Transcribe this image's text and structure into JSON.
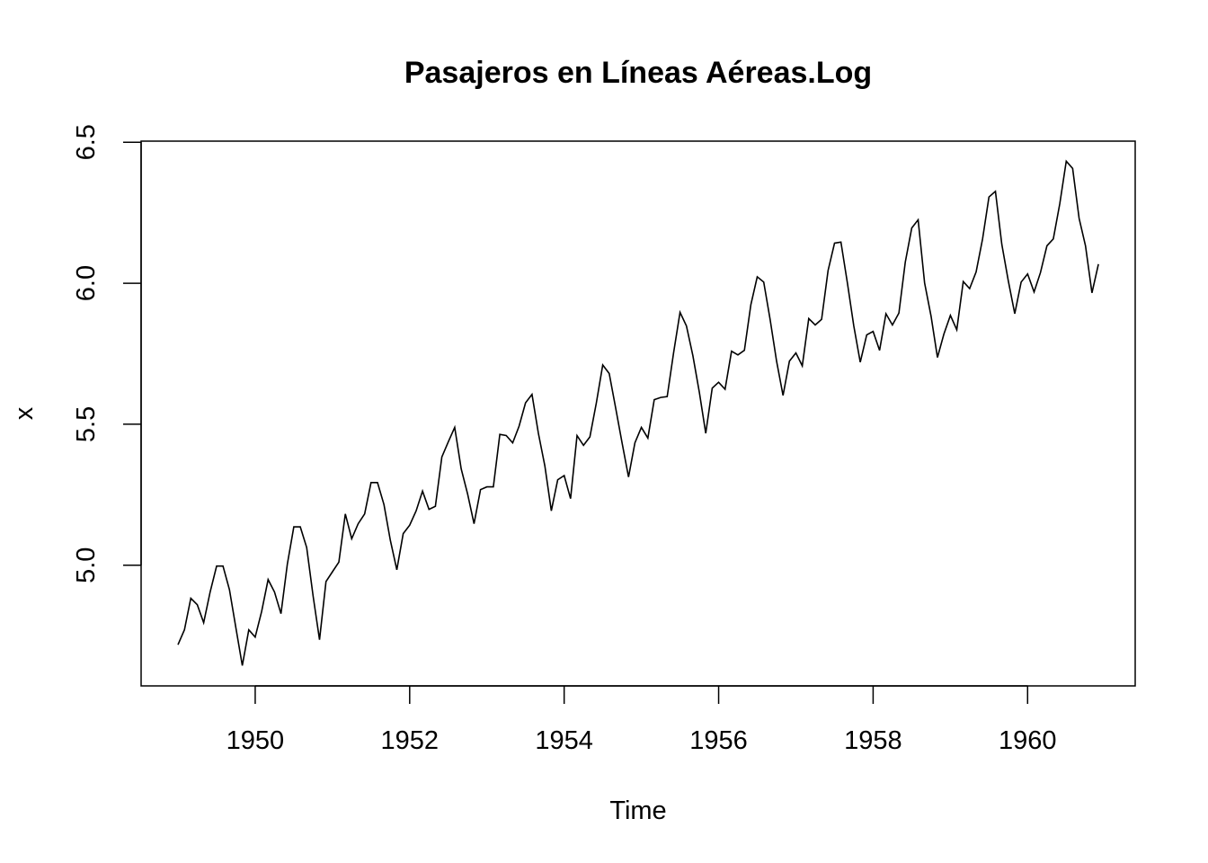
{
  "chart_data": {
    "type": "line",
    "title": "Pasajeros en Líneas Aéreas.Log",
    "xlabel": "Time",
    "ylabel": "x",
    "xlim": [
      1948.523,
      1961.393
    ],
    "ylim": [
      4.572,
      6.504
    ],
    "x_start": 1949,
    "frequency": 12,
    "xticks": [
      1950,
      1952,
      1954,
      1956,
      1958,
      1960
    ],
    "xtick_labels": [
      "1950",
      "1952",
      "1954",
      "1956",
      "1958",
      "1960"
    ],
    "yticks": [
      5.0,
      5.5,
      6.0,
      6.5
    ],
    "ytick_labels": [
      "5.0",
      "5.5",
      "6.0",
      "6.5"
    ],
    "grid": false,
    "series": [
      {
        "name": "x",
        "color": "#000000",
        "values": [
          4.718,
          4.771,
          4.883,
          4.86,
          4.796,
          4.905,
          4.997,
          4.997,
          4.913,
          4.779,
          4.644,
          4.771,
          4.745,
          4.836,
          4.949,
          4.905,
          4.828,
          5.004,
          5.136,
          5.136,
          5.063,
          4.89,
          4.736,
          4.942,
          4.977,
          5.011,
          5.182,
          5.094,
          5.147,
          5.182,
          5.293,
          5.293,
          5.215,
          5.088,
          4.984,
          5.112,
          5.142,
          5.193,
          5.263,
          5.198,
          5.209,
          5.384,
          5.438,
          5.489,
          5.342,
          5.252,
          5.147,
          5.268,
          5.278,
          5.278,
          5.464,
          5.46,
          5.434,
          5.493,
          5.576,
          5.606,
          5.468,
          5.352,
          5.193,
          5.303,
          5.318,
          5.236,
          5.46,
          5.425,
          5.455,
          5.576,
          5.71,
          5.68,
          5.557,
          5.434,
          5.313,
          5.434,
          5.489,
          5.451,
          5.587,
          5.595,
          5.598,
          5.753,
          5.897,
          5.849,
          5.743,
          5.613,
          5.468,
          5.628,
          5.649,
          5.624,
          5.759,
          5.746,
          5.762,
          5.924,
          6.023,
          6.004,
          5.872,
          5.724,
          5.602,
          5.724,
          5.753,
          5.707,
          5.875,
          5.852,
          5.872,
          6.045,
          6.142,
          6.146,
          6.001,
          5.849,
          5.72,
          5.817,
          5.829,
          5.762,
          5.892,
          5.852,
          5.894,
          6.075,
          6.196,
          6.225,
          6.001,
          5.883,
          5.737,
          5.82,
          5.886,
          5.835,
          6.006,
          5.981,
          6.04,
          6.157,
          6.306,
          6.326,
          6.138,
          6.009,
          5.892,
          6.004,
          6.033,
          5.969,
          6.038,
          6.133,
          6.157,
          6.282,
          6.433,
          6.407,
          6.23,
          6.133,
          5.966,
          6.068
        ]
      }
    ]
  }
}
